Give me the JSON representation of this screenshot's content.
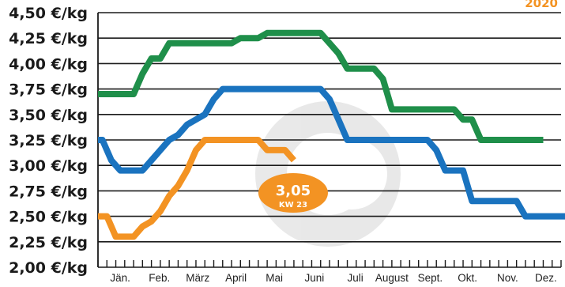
{
  "chart_data": {
    "type": "line",
    "title": "",
    "xlabel": "",
    "ylabel": "",
    "ylim": [
      2.0,
      4.5
    ],
    "xlim": [
      0,
      52
    ],
    "y_ticks": [
      "2,00 €/kg",
      "2,25 €/kg",
      "2,50 €/kg",
      "2,75 €/kg",
      "3,00 €/kg",
      "3,25 €/kg",
      "3,50 €/kg",
      "3,75 €/kg",
      "4,00 €/kg",
      "4,25 €/kg",
      "4,50 €/kg"
    ],
    "months": [
      {
        "label": "Jän.",
        "pos": 2.5
      },
      {
        "label": "Feb.",
        "pos": 6.9
      },
      {
        "label": "März",
        "pos": 11.2
      },
      {
        "label": "April",
        "pos": 15.5
      },
      {
        "label": "Mai",
        "pos": 19.8
      },
      {
        "label": "Juni",
        "pos": 24.3
      },
      {
        "label": "Juli",
        "pos": 28.9
      },
      {
        "label": "August",
        "pos": 33.0
      },
      {
        "label": "Sept.",
        "pos": 37.3
      },
      {
        "label": "Okt.",
        "pos": 41.5
      },
      {
        "label": "Nov.",
        "pos": 46.0
      },
      {
        "label": "Dez.",
        "pos": 50.3
      }
    ],
    "year_label": "2020",
    "series": [
      {
        "color": "#1f8f4a",
        "points": [
          [
            0,
            3.7
          ],
          [
            4,
            3.7
          ],
          [
            5,
            3.9
          ],
          [
            6,
            4.05
          ],
          [
            7,
            4.05
          ],
          [
            8,
            4.2
          ],
          [
            15,
            4.2
          ],
          [
            16,
            4.25
          ],
          [
            18,
            4.25
          ],
          [
            19,
            4.3
          ],
          [
            25,
            4.3
          ],
          [
            26,
            4.2
          ],
          [
            27,
            4.1
          ],
          [
            28,
            3.95
          ],
          [
            31,
            3.95
          ],
          [
            32,
            3.85
          ],
          [
            33,
            3.55
          ],
          [
            40,
            3.55
          ],
          [
            41,
            3.45
          ],
          [
            42,
            3.45
          ],
          [
            43,
            3.25
          ],
          [
            50,
            3.25
          ]
        ]
      },
      {
        "color": "#1a73bf",
        "points": [
          [
            0,
            3.25
          ],
          [
            0.5,
            3.25
          ],
          [
            1.5,
            3.05
          ],
          [
            2.5,
            2.95
          ],
          [
            5,
            2.95
          ],
          [
            6,
            3.05
          ],
          [
            7,
            3.15
          ],
          [
            8,
            3.25
          ],
          [
            9,
            3.3
          ],
          [
            10,
            3.4
          ],
          [
            11,
            3.45
          ],
          [
            12,
            3.5
          ],
          [
            13,
            3.65
          ],
          [
            14,
            3.75
          ],
          [
            25,
            3.75
          ],
          [
            26,
            3.65
          ],
          [
            27,
            3.45
          ],
          [
            28,
            3.25
          ],
          [
            37,
            3.25
          ],
          [
            38,
            3.15
          ],
          [
            39,
            2.95
          ],
          [
            41,
            2.95
          ],
          [
            42,
            2.65
          ],
          [
            47,
            2.65
          ],
          [
            48,
            2.5
          ],
          [
            53,
            2.5
          ]
        ]
      },
      {
        "color": "#f39323",
        "points": [
          [
            0,
            2.5
          ],
          [
            1,
            2.5
          ],
          [
            2,
            2.3
          ],
          [
            4,
            2.3
          ],
          [
            5,
            2.4
          ],
          [
            6,
            2.45
          ],
          [
            7,
            2.55
          ],
          [
            8,
            2.7
          ],
          [
            9,
            2.8
          ],
          [
            10,
            2.95
          ],
          [
            11,
            3.15
          ],
          [
            12,
            3.25
          ],
          [
            18,
            3.25
          ],
          [
            19,
            3.15
          ],
          [
            21,
            3.15
          ],
          [
            22,
            3.05
          ]
        ]
      }
    ],
    "annotation": {
      "value": "3,05",
      "sub": "KW 23",
      "color": "#f39323"
    }
  }
}
